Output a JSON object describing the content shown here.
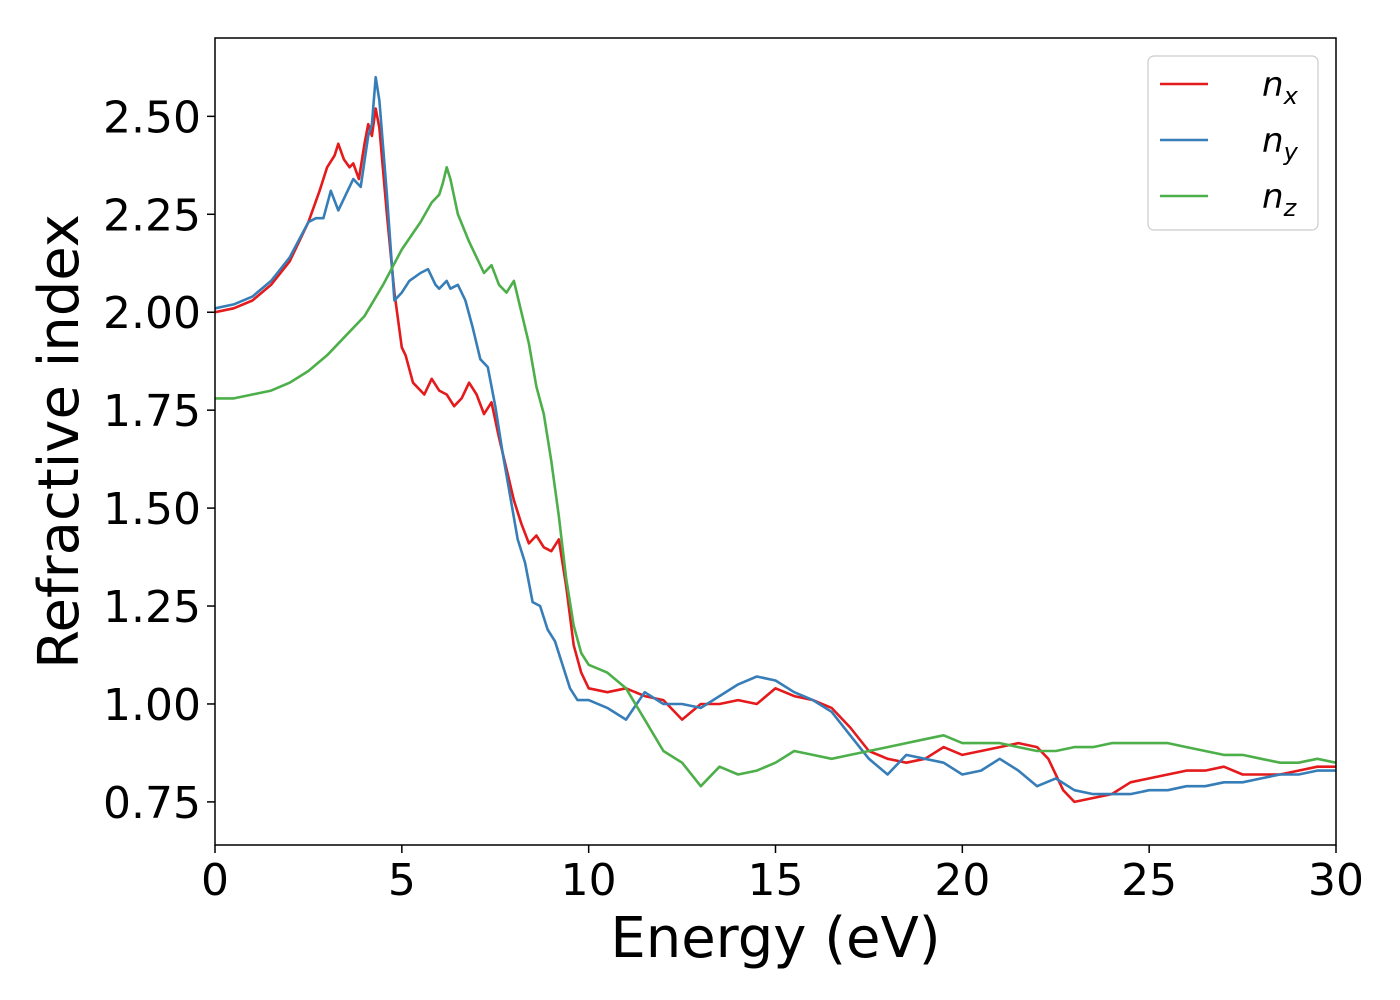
{
  "chart_data": {
    "type": "line",
    "title": "",
    "xlabel": "Energy (eV)",
    "ylabel": "Refractive index",
    "xlim": [
      0,
      30
    ],
    "ylim": [
      0.64,
      2.7
    ],
    "xticks": [
      0,
      5,
      10,
      15,
      20,
      25,
      30
    ],
    "xtick_labels": [
      "0",
      "5",
      "10",
      "15",
      "20",
      "25",
      "30"
    ],
    "yticks": [
      0.75,
      1.0,
      1.25,
      1.5,
      1.75,
      2.0,
      2.25,
      2.5
    ],
    "ytick_labels": [
      "0.75",
      "1.00",
      "1.25",
      "1.50",
      "1.75",
      "2.00",
      "2.25",
      "2.50"
    ],
    "grid": false,
    "legend_position": "top-right",
    "series": [
      {
        "name": "n_x",
        "label_base": "n",
        "label_sub": "x",
        "color": "#e41a1c",
        "x": [
          0,
          0.5,
          1,
          1.5,
          2,
          2.5,
          2.8,
          3.0,
          3.2,
          3.3,
          3.45,
          3.6,
          3.7,
          3.85,
          4.0,
          4.1,
          4.2,
          4.3,
          4.4,
          4.6,
          4.8,
          5.0,
          5.1,
          5.3,
          5.6,
          5.8,
          6.0,
          6.2,
          6.4,
          6.6,
          6.8,
          7.0,
          7.2,
          7.4,
          7.6,
          7.8,
          8.0,
          8.2,
          8.4,
          8.6,
          8.8,
          9.0,
          9.2,
          9.4,
          9.6,
          9.8,
          10.0,
          10.5,
          11.0,
          11.5,
          12.0,
          12.5,
          13.0,
          13.5,
          14.0,
          14.5,
          15.0,
          15.5,
          16.0,
          16.5,
          17.0,
          17.5,
          18.0,
          18.5,
          19.0,
          19.5,
          20.0,
          20.5,
          21.0,
          21.5,
          22.0,
          22.3,
          22.7,
          23.0,
          23.5,
          24.0,
          24.5,
          25.0,
          25.5,
          26.0,
          26.5,
          27.0,
          27.5,
          28.0,
          28.5,
          29.0,
          29.5,
          30.0
        ],
        "y": [
          2.0,
          2.01,
          2.03,
          2.07,
          2.13,
          2.23,
          2.31,
          2.37,
          2.4,
          2.43,
          2.39,
          2.37,
          2.38,
          2.34,
          2.43,
          2.48,
          2.45,
          2.52,
          2.47,
          2.25,
          2.05,
          1.91,
          1.89,
          1.82,
          1.79,
          1.83,
          1.8,
          1.79,
          1.76,
          1.78,
          1.82,
          1.79,
          1.74,
          1.77,
          1.68,
          1.6,
          1.52,
          1.46,
          1.41,
          1.43,
          1.4,
          1.39,
          1.42,
          1.3,
          1.15,
          1.08,
          1.04,
          1.03,
          1.04,
          1.02,
          1.01,
          0.96,
          1.0,
          1.0,
          1.01,
          1.0,
          1.04,
          1.02,
          1.01,
          0.99,
          0.94,
          0.88,
          0.86,
          0.85,
          0.86,
          0.89,
          0.87,
          0.88,
          0.89,
          0.9,
          0.89,
          0.86,
          0.78,
          0.75,
          0.76,
          0.77,
          0.8,
          0.81,
          0.82,
          0.83,
          0.83,
          0.84,
          0.82,
          0.82,
          0.82,
          0.83,
          0.84,
          0.84
        ]
      },
      {
        "name": "n_y",
        "label_base": "n",
        "label_sub": "y",
        "color": "#377eb8",
        "x": [
          0,
          0.5,
          1,
          1.5,
          2,
          2.5,
          2.7,
          2.9,
          3.1,
          3.3,
          3.5,
          3.7,
          3.9,
          4.1,
          4.2,
          4.3,
          4.4,
          4.6,
          4.8,
          5.0,
          5.2,
          5.5,
          5.7,
          5.9,
          6.0,
          6.2,
          6.3,
          6.5,
          6.7,
          6.9,
          7.1,
          7.3,
          7.5,
          7.7,
          7.9,
          8.1,
          8.3,
          8.5,
          8.7,
          8.9,
          9.1,
          9.3,
          9.5,
          9.7,
          10.0,
          10.5,
          11.0,
          11.5,
          12.0,
          12.5,
          13.0,
          13.5,
          14.0,
          14.5,
          15.0,
          15.5,
          16.0,
          16.5,
          17.0,
          17.5,
          18.0,
          18.5,
          19.0,
          19.5,
          20.0,
          20.5,
          21.0,
          21.5,
          22.0,
          22.5,
          23.0,
          23.5,
          24.0,
          24.5,
          25.0,
          25.5,
          26.0,
          26.5,
          27.0,
          27.5,
          28.0,
          28.5,
          29.0,
          29.5,
          30.0
        ],
        "y": [
          2.01,
          2.02,
          2.04,
          2.08,
          2.14,
          2.23,
          2.24,
          2.24,
          2.31,
          2.26,
          2.3,
          2.34,
          2.32,
          2.45,
          2.48,
          2.6,
          2.54,
          2.3,
          2.03,
          2.05,
          2.08,
          2.1,
          2.11,
          2.07,
          2.06,
          2.08,
          2.06,
          2.07,
          2.03,
          1.96,
          1.88,
          1.86,
          1.76,
          1.64,
          1.53,
          1.42,
          1.36,
          1.26,
          1.25,
          1.19,
          1.16,
          1.1,
          1.04,
          1.01,
          1.01,
          0.99,
          0.96,
          1.03,
          1.0,
          1.0,
          0.99,
          1.02,
          1.05,
          1.07,
          1.06,
          1.03,
          1.01,
          0.98,
          0.92,
          0.86,
          0.82,
          0.87,
          0.86,
          0.85,
          0.82,
          0.83,
          0.86,
          0.83,
          0.79,
          0.81,
          0.78,
          0.77,
          0.77,
          0.77,
          0.78,
          0.78,
          0.79,
          0.79,
          0.8,
          0.8,
          0.81,
          0.82,
          0.82,
          0.83,
          0.83
        ]
      },
      {
        "name": "n_z",
        "label_base": "n",
        "label_sub": "z",
        "color": "#4daf4a",
        "x": [
          0,
          0.5,
          1,
          1.5,
          2,
          2.5,
          3.0,
          3.5,
          4.0,
          4.5,
          5.0,
          5.5,
          5.8,
          6.0,
          6.1,
          6.2,
          6.3,
          6.5,
          6.8,
          7.0,
          7.2,
          7.4,
          7.6,
          7.8,
          8.0,
          8.2,
          8.4,
          8.6,
          8.8,
          9.0,
          9.2,
          9.4,
          9.6,
          9.8,
          10.0,
          10.5,
          11.0,
          11.5,
          12.0,
          12.5,
          13.0,
          13.5,
          14.0,
          14.5,
          15.0,
          15.5,
          16.0,
          16.5,
          17.0,
          17.5,
          18.0,
          18.5,
          19.0,
          19.5,
          20.0,
          20.5,
          21.0,
          21.5,
          22.0,
          22.5,
          23.0,
          23.5,
          24.0,
          24.5,
          25.0,
          25.5,
          26.0,
          26.5,
          27.0,
          27.5,
          28.0,
          28.5,
          29.0,
          29.5,
          30.0
        ],
        "y": [
          1.78,
          1.78,
          1.79,
          1.8,
          1.82,
          1.85,
          1.89,
          1.94,
          1.99,
          2.07,
          2.16,
          2.23,
          2.28,
          2.3,
          2.33,
          2.37,
          2.34,
          2.25,
          2.18,
          2.14,
          2.1,
          2.12,
          2.07,
          2.05,
          2.08,
          2.0,
          1.92,
          1.81,
          1.74,
          1.62,
          1.48,
          1.32,
          1.2,
          1.13,
          1.1,
          1.08,
          1.04,
          0.96,
          0.88,
          0.85,
          0.79,
          0.84,
          0.82,
          0.83,
          0.85,
          0.88,
          0.87,
          0.86,
          0.87,
          0.88,
          0.89,
          0.9,
          0.91,
          0.92,
          0.9,
          0.9,
          0.9,
          0.89,
          0.88,
          0.88,
          0.89,
          0.89,
          0.9,
          0.9,
          0.9,
          0.9,
          0.89,
          0.88,
          0.87,
          0.87,
          0.86,
          0.85,
          0.85,
          0.86,
          0.85
        ]
      }
    ]
  }
}
